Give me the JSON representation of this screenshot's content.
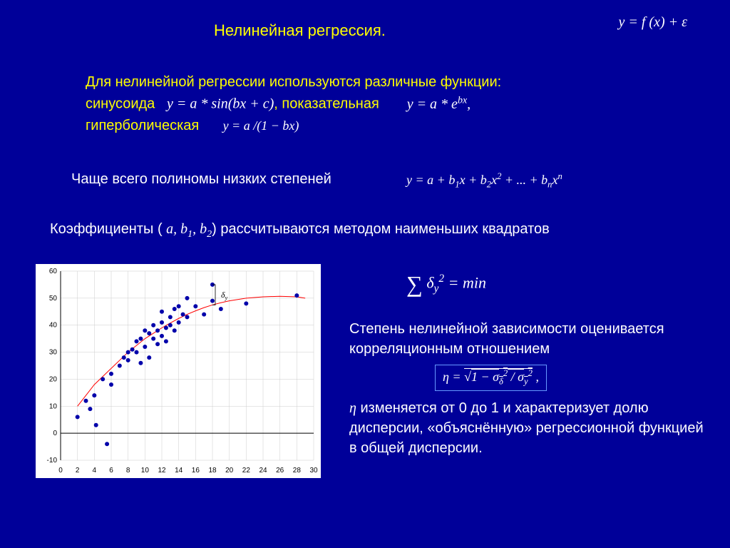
{
  "title": "Нелинейная регрессия.",
  "eq_top": "y = f (x) + ε",
  "para1_line1": "Для нелинейной регрессии используются различные функции:",
  "para1_sinus_label": "синусоида",
  "eq_sin": "y = a * sin(bx + c)",
  "para1_exp_label": ", показательная",
  "eq_exp_pre": "y = a * e",
  "eq_exp_sup": "bx",
  "para1_hyp_label": "гиперболическая",
  "eq_hyp": "y = a /(1 − bx)",
  "para2": "Чаще всего полиномы низких степеней",
  "eq_poly": "y = a + b₁x + b₂x² + ... + bₙxⁿ",
  "para3_a": "Коэффициенты (",
  "para3_coef": "a, b₁, b₂",
  "para3_b": ") рассчитываются методом наименьших квадратов",
  "eq_sum": "δ",
  "eq_sum_sub": "y",
  "eq_sum_sup": "2",
  "eq_sum_rhs": " = min",
  "para_r1": "Степень нелинейной зависимости оценивается корреляционным отношением",
  "eq_eta_lhs": "η = ",
  "eq_eta_root": "1 − σ",
  "eq_eta_sub1": "δ",
  "eq_eta_sup": "2",
  "eq_eta_div": " / σ",
  "eq_eta_sub2": "y",
  "eq_eta_comma": " ,",
  "para_r2_eta": "η",
  "para_r2": " изменяется от 0 до 1 и характеризует долю дисперсии, «объяснённую» регрессионной функцией в общей дисперсии.",
  "chart": {
    "type": "scatter",
    "background_color": "#ffffff",
    "grid_color": "#cccccc",
    "axis_color": "#000000",
    "tick_fontsize": 10,
    "tick_color": "#000000",
    "xlim": [
      0,
      30
    ],
    "ylim": [
      -10,
      60
    ],
    "xticks": [
      0,
      2,
      4,
      6,
      8,
      10,
      12,
      14,
      16,
      18,
      20,
      22,
      24,
      26,
      28,
      30
    ],
    "yticks": [
      -10,
      0,
      10,
      20,
      30,
      40,
      50,
      60
    ],
    "curve_color": "#ff0000",
    "curve_width": 1,
    "curve": [
      [
        2,
        10
      ],
      [
        3,
        14
      ],
      [
        4,
        18
      ],
      [
        5,
        21
      ],
      [
        6,
        24
      ],
      [
        7,
        27
      ],
      [
        8,
        30
      ],
      [
        9,
        32.5
      ],
      [
        10,
        35
      ],
      [
        11,
        37
      ],
      [
        12,
        39
      ],
      [
        13,
        40.8
      ],
      [
        14,
        42.5
      ],
      [
        15,
        44
      ],
      [
        16,
        45.3
      ],
      [
        17,
        46.5
      ],
      [
        18,
        47.5
      ],
      [
        19,
        48.3
      ],
      [
        20,
        49
      ],
      [
        22,
        50
      ],
      [
        24,
        50.5
      ],
      [
        26,
        50.7
      ],
      [
        28,
        50.5
      ],
      [
        29,
        50
      ]
    ],
    "marker_color": "#0000aa",
    "marker_size": 3,
    "points": [
      [
        2,
        6
      ],
      [
        3,
        12
      ],
      [
        3.5,
        9
      ],
      [
        4,
        14
      ],
      [
        4.2,
        3
      ],
      [
        5,
        20
      ],
      [
        5.5,
        -4
      ],
      [
        6,
        22
      ],
      [
        6,
        18
      ],
      [
        7,
        25
      ],
      [
        7.5,
        28
      ],
      [
        8,
        27
      ],
      [
        8,
        30
      ],
      [
        8.5,
        31
      ],
      [
        9,
        30
      ],
      [
        9,
        34
      ],
      [
        9.5,
        26
      ],
      [
        9.5,
        35
      ],
      [
        10,
        32
      ],
      [
        10,
        38
      ],
      [
        10.5,
        37
      ],
      [
        10.5,
        28
      ],
      [
        11,
        35
      ],
      [
        11,
        40
      ],
      [
        11.5,
        33
      ],
      [
        11.5,
        38
      ],
      [
        12,
        36
      ],
      [
        12,
        41
      ],
      [
        12,
        45
      ],
      [
        12.5,
        39
      ],
      [
        12.5,
        34
      ],
      [
        13,
        40
      ],
      [
        13,
        43
      ],
      [
        13.5,
        38
      ],
      [
        13.5,
        46
      ],
      [
        14,
        41
      ],
      [
        14,
        47
      ],
      [
        14.5,
        44
      ],
      [
        15,
        43
      ],
      [
        15,
        50
      ],
      [
        16,
        47
      ],
      [
        17,
        44
      ],
      [
        18,
        49
      ],
      [
        18,
        55
      ],
      [
        19,
        46
      ],
      [
        22,
        48
      ],
      [
        28,
        51
      ]
    ],
    "delta_label": "δ",
    "delta_sub": "y",
    "delta_x": 18,
    "delta_y": 55,
    "delta_bracket_x": 18,
    "delta_bracket_y1": 47.5,
    "delta_bracket_y2": 55
  }
}
